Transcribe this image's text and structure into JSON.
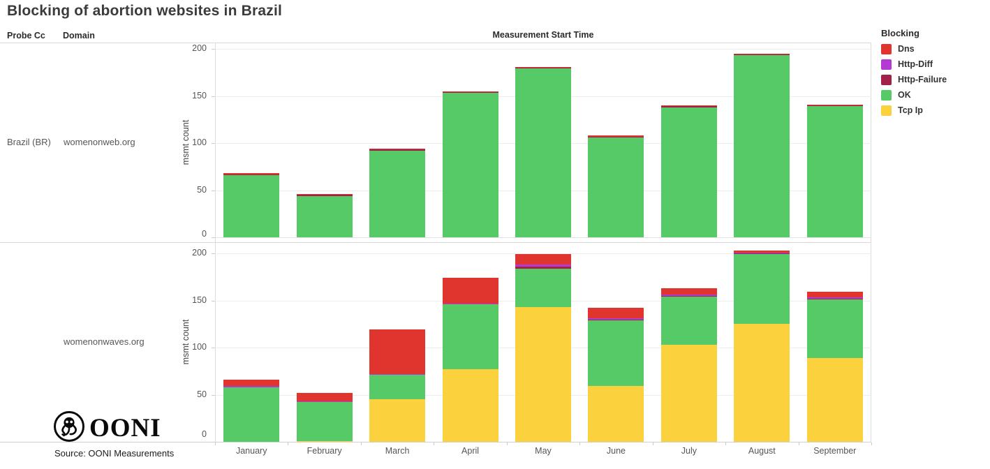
{
  "title": "Blocking of abortion websites in Brazil",
  "table_header": {
    "probe_cc": "Probe Cc",
    "domain": "Domain"
  },
  "row": {
    "probe_cc": "Brazil (BR)",
    "domain_top": "womenonweb.org",
    "domain_bottom": "womenonwaves.org"
  },
  "axis": {
    "x_title": "Measurement Start Time",
    "y_title": "msmt count",
    "y_ticks": [
      0,
      50,
      100,
      150,
      200
    ]
  },
  "legend": {
    "title": "Blocking",
    "entries": [
      {
        "label": "Dns",
        "color": "#e0352e"
      },
      {
        "label": "Http-Diff",
        "color": "#b43bd1"
      },
      {
        "label": "Http-Failure",
        "color": "#a32049"
      },
      {
        "label": "OK",
        "color": "#57ca68"
      },
      {
        "label": "Tcp Ip",
        "color": "#fcd13e"
      }
    ]
  },
  "footer": {
    "logo_text": "OONI",
    "source": "Source: OONI Measurements"
  },
  "chart_data": [
    {
      "type": "bar",
      "stacked": true,
      "probe_cc": "Brazil (BR)",
      "panel_label": "womenonweb.org",
      "categories": [
        "January",
        "February",
        "March",
        "April",
        "May",
        "June",
        "July",
        "August",
        "September"
      ],
      "series": [
        {
          "name": "Tcp Ip",
          "color": "#fcd13e",
          "values": [
            0,
            0,
            0,
            0,
            0,
            0,
            0,
            0,
            0
          ]
        },
        {
          "name": "OK",
          "color": "#57ca68",
          "values": [
            66,
            44,
            92,
            153,
            179,
            106,
            138,
            193,
            139
          ]
        },
        {
          "name": "Http-Failure",
          "color": "#a32049",
          "values": [
            1,
            1,
            1,
            1,
            1,
            1,
            1,
            1,
            1
          ]
        },
        {
          "name": "Http-Diff",
          "color": "#b43bd1",
          "values": [
            0,
            0,
            0,
            0,
            0,
            0,
            0,
            0,
            0
          ]
        },
        {
          "name": "Dns",
          "color": "#e0352e",
          "values": [
            1,
            1,
            1,
            1,
            1,
            1,
            1,
            1,
            1
          ]
        }
      ],
      "totals": [
        68,
        46,
        94,
        155,
        181,
        108,
        140,
        195,
        141
      ],
      "xlabel": "Measurement Start Time",
      "ylabel": "msmt count",
      "ylim": [
        0,
        200
      ],
      "stack_order": "bottom-to-top as listed",
      "grid": true,
      "legend_position": "right"
    },
    {
      "type": "bar",
      "stacked": true,
      "probe_cc": "Brazil (BR)",
      "panel_label": "womenonwaves.org",
      "categories": [
        "January",
        "February",
        "March",
        "April",
        "May",
        "June",
        "July",
        "August",
        "September"
      ],
      "series": [
        {
          "name": "Tcp Ip",
          "color": "#fcd13e",
          "values": [
            0,
            1,
            45,
            77,
            143,
            59,
            103,
            125,
            89
          ]
        },
        {
          "name": "OK",
          "color": "#57ca68",
          "values": [
            58,
            41,
            26,
            69,
            41,
            70,
            51,
            74,
            62
          ]
        },
        {
          "name": "Http-Failure",
          "color": "#a32049",
          "values": [
            0,
            0,
            0,
            0,
            2,
            1,
            1,
            1,
            1
          ]
        },
        {
          "name": "Http-Diff",
          "color": "#b43bd1",
          "values": [
            1,
            1,
            1,
            1,
            2,
            1,
            1,
            1,
            1
          ]
        },
        {
          "name": "Dns",
          "color": "#e0352e",
          "values": [
            7,
            9,
            47,
            27,
            11,
            11,
            7,
            2,
            6
          ]
        }
      ],
      "totals": [
        66,
        52,
        119,
        174,
        199,
        142,
        163,
        203,
        159
      ],
      "xlabel": "Measurement Start Time",
      "ylabel": "msmt count",
      "ylim": [
        0,
        200
      ],
      "stack_order": "bottom-to-top as listed",
      "grid": true,
      "legend_position": "right"
    }
  ]
}
